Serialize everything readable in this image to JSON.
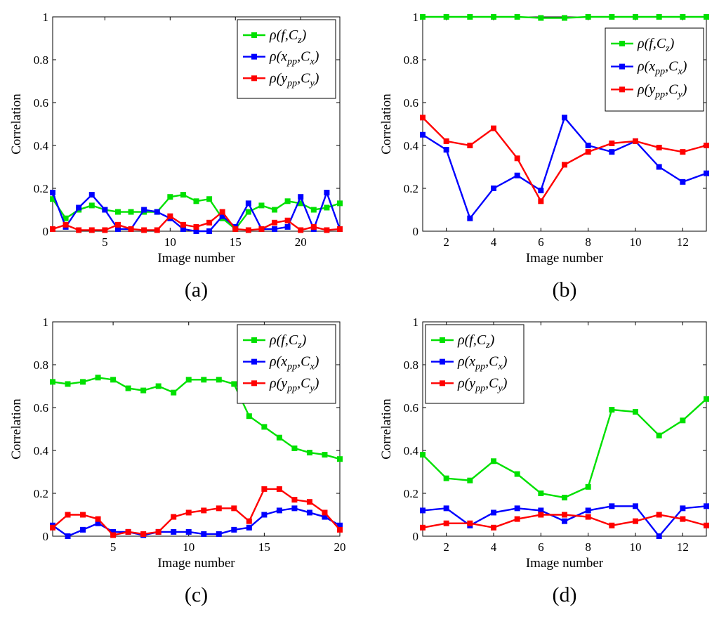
{
  "colors": {
    "rho_f": "#00e000",
    "rho_x": "#0000ff",
    "rho_y": "#ff0000"
  },
  "chart_data": [
    {
      "panel": "(a)",
      "type": "line",
      "xlabel": "Image number",
      "ylabel": "Correlation",
      "xlim": [
        1,
        23
      ],
      "ylim": [
        0,
        1
      ],
      "xticks": [
        5,
        10,
        15,
        20
      ],
      "yticks": [
        0,
        0.2,
        0.4,
        0.6,
        0.8,
        1
      ],
      "legend_position": "top-right",
      "x": [
        1,
        2,
        3,
        4,
        5,
        6,
        7,
        8,
        9,
        10,
        11,
        12,
        13,
        14,
        15,
        16,
        17,
        18,
        19,
        20,
        21,
        22,
        23
      ],
      "series": [
        {
          "name": "ρ(f,Cz)",
          "color": "rho_f",
          "values": [
            0.15,
            0.06,
            0.1,
            0.12,
            0.1,
            0.09,
            0.09,
            0.09,
            0.09,
            0.16,
            0.17,
            0.14,
            0.15,
            0.06,
            0.01,
            0.09,
            0.12,
            0.1,
            0.14,
            0.13,
            0.1,
            0.11,
            0.13
          ]
        },
        {
          "name": "ρ(xpp,Cx)",
          "color": "rho_x",
          "values": [
            0.18,
            0.02,
            0.11,
            0.17,
            0.1,
            0.01,
            0.01,
            0.1,
            0.09,
            0.06,
            0.01,
            0.0,
            0.0,
            0.07,
            0.02,
            0.13,
            0.01,
            0.01,
            0.02,
            0.16,
            0.01,
            0.18,
            0.01
          ]
        },
        {
          "name": "ρ(ypp,Cy)",
          "color": "rho_y",
          "values": [
            0.01,
            0.03,
            0.005,
            0.005,
            0.005,
            0.03,
            0.01,
            0.005,
            0.005,
            0.07,
            0.03,
            0.02,
            0.04,
            0.09,
            0.01,
            0.005,
            0.01,
            0.04,
            0.05,
            0.005,
            0.02,
            0.005,
            0.01
          ]
        }
      ]
    },
    {
      "panel": "(b)",
      "type": "line",
      "xlabel": "Image number",
      "ylabel": "Correlation",
      "xlim": [
        1,
        13
      ],
      "ylim": [
        0,
        1
      ],
      "xticks": [
        2,
        4,
        6,
        8,
        10,
        12
      ],
      "yticks": [
        0,
        0.2,
        0.4,
        0.6,
        0.8,
        1
      ],
      "legend_position": "top-right",
      "x": [
        1,
        2,
        3,
        4,
        5,
        6,
        7,
        8,
        9,
        10,
        11,
        12,
        13
      ],
      "series": [
        {
          "name": "ρ(f,Cz)",
          "color": "rho_f",
          "values": [
            1.0,
            1.0,
            1.0,
            1.0,
            1.0,
            0.995,
            0.995,
            1.0,
            1.0,
            1.0,
            1.0,
            1.0,
            1.0
          ]
        },
        {
          "name": "ρ(xpp,Cx)",
          "color": "rho_x",
          "values": [
            0.45,
            0.38,
            0.06,
            0.2,
            0.26,
            0.19,
            0.53,
            0.4,
            0.37,
            0.42,
            0.3,
            0.23,
            0.27
          ]
        },
        {
          "name": "ρ(ypp,Cy)",
          "color": "rho_y",
          "values": [
            0.53,
            0.42,
            0.4,
            0.48,
            0.34,
            0.14,
            0.31,
            0.37,
            0.41,
            0.42,
            0.39,
            0.37,
            0.4
          ]
        }
      ]
    },
    {
      "panel": "(c)",
      "type": "line",
      "xlabel": "Image number",
      "ylabel": "Correlation",
      "xlim": [
        1,
        20
      ],
      "ylim": [
        0,
        1
      ],
      "xticks": [
        5,
        10,
        15,
        20
      ],
      "yticks": [
        0,
        0.2,
        0.4,
        0.6,
        0.8,
        1
      ],
      "legend_position": "top-right",
      "x": [
        1,
        2,
        3,
        4,
        5,
        6,
        7,
        8,
        9,
        10,
        11,
        12,
        13,
        14,
        15,
        16,
        17,
        18,
        19,
        20
      ],
      "series": [
        {
          "name": "ρ(f,Cz)",
          "color": "rho_f",
          "values": [
            0.72,
            0.71,
            0.72,
            0.74,
            0.73,
            0.69,
            0.68,
            0.7,
            0.67,
            0.73,
            0.73,
            0.73,
            0.71,
            0.56,
            0.51,
            0.46,
            0.41,
            0.39,
            0.38,
            0.36
          ]
        },
        {
          "name": "ρ(xpp,Cx)",
          "color": "rho_x",
          "values": [
            0.05,
            0.0,
            0.03,
            0.06,
            0.02,
            0.02,
            0.005,
            0.02,
            0.02,
            0.02,
            0.01,
            0.01,
            0.03,
            0.04,
            0.1,
            0.12,
            0.13,
            0.11,
            0.09,
            0.05
          ]
        },
        {
          "name": "ρ(ypp,Cy)",
          "color": "rho_y",
          "values": [
            0.04,
            0.1,
            0.1,
            0.08,
            0.005,
            0.02,
            0.01,
            0.02,
            0.09,
            0.11,
            0.12,
            0.13,
            0.13,
            0.07,
            0.22,
            0.22,
            0.17,
            0.16,
            0.11,
            0.03
          ]
        }
      ]
    },
    {
      "panel": "(d)",
      "type": "line",
      "xlabel": "Image number",
      "ylabel": "Correlation",
      "xlim": [
        1,
        13
      ],
      "ylim": [
        0,
        1
      ],
      "xticks": [
        2,
        4,
        6,
        8,
        10,
        12
      ],
      "yticks": [
        0,
        0.2,
        0.4,
        0.6,
        0.8,
        1
      ],
      "legend_position": "top-left",
      "x": [
        1,
        2,
        3,
        4,
        5,
        6,
        7,
        8,
        9,
        10,
        11,
        12,
        13
      ],
      "series": [
        {
          "name": "ρ(f,Cz)",
          "color": "rho_f",
          "values": [
            0.38,
            0.27,
            0.26,
            0.35,
            0.29,
            0.2,
            0.18,
            0.23,
            0.59,
            0.58,
            0.47,
            0.54,
            0.64
          ]
        },
        {
          "name": "ρ(xpp,Cx)",
          "color": "rho_x",
          "values": [
            0.12,
            0.13,
            0.05,
            0.11,
            0.13,
            0.12,
            0.07,
            0.12,
            0.14,
            0.14,
            0.0,
            0.13,
            0.14
          ]
        },
        {
          "name": "ρ(ypp,Cy)",
          "color": "rho_y",
          "values": [
            0.04,
            0.06,
            0.06,
            0.04,
            0.08,
            0.1,
            0.1,
            0.09,
            0.05,
            0.07,
            0.1,
            0.08,
            0.05
          ]
        }
      ]
    }
  ]
}
